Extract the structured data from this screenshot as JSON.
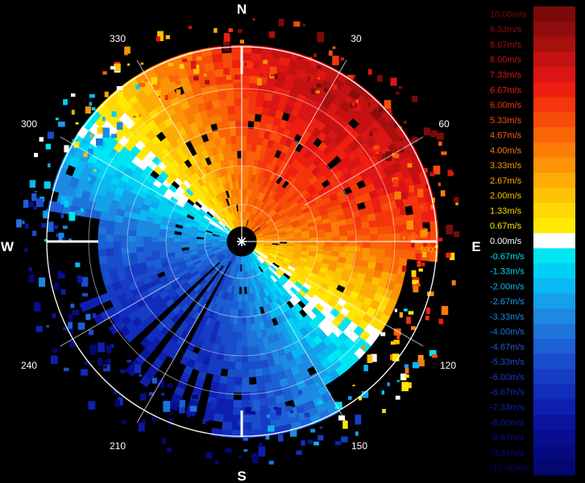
{
  "compass": {
    "north": "N",
    "east": "E",
    "south": "S",
    "west": "W"
  },
  "bearings": [
    "30",
    "60",
    "120",
    "150",
    "210",
    "240",
    "300",
    "330"
  ],
  "range_labels": [
    "1000",
    "2000",
    "3000",
    "5000"
  ],
  "legend": {
    "items": [
      {
        "label": "10.00m/s",
        "color": "#7a0a0a"
      },
      {
        "label": "9.33m/s",
        "color": "#8f0c0c"
      },
      {
        "label": "8.67m/s",
        "color": "#a80f0f"
      },
      {
        "label": "8.00m/s",
        "color": "#c41212"
      },
      {
        "label": "7.33m/s",
        "color": "#db1515"
      },
      {
        "label": "6.67m/s",
        "color": "#ee1e10"
      },
      {
        "label": "6.00m/s",
        "color": "#f5350c"
      },
      {
        "label": "5.33m/s",
        "color": "#f84c0a"
      },
      {
        "label": "4.67m/s",
        "color": "#fa6408"
      },
      {
        "label": "4.00m/s",
        "color": "#fb7c07"
      },
      {
        "label": "3.33m/s",
        "color": "#fc9406"
      },
      {
        "label": "2.67m/s",
        "color": "#fdab05"
      },
      {
        "label": "2.00m/s",
        "color": "#fec204"
      },
      {
        "label": "1.33m/s",
        "color": "#ffd803"
      },
      {
        "label": "0.67m/s",
        "color": "#ffe902"
      },
      {
        "label": "0.00m/s",
        "color": "#ffffff"
      },
      {
        "label": "-0.67m/s",
        "color": "#00e6f2"
      },
      {
        "label": "-1.33m/s",
        "color": "#00d0f5"
      },
      {
        "label": "-2.00m/s",
        "color": "#0ab8f2"
      },
      {
        "label": "-2.67m/s",
        "color": "#169fea"
      },
      {
        "label": "-3.33m/s",
        "color": "#1d8ae2"
      },
      {
        "label": "-4.00m/s",
        "color": "#1f74db"
      },
      {
        "label": "-4.67m/s",
        "color": "#1d5fd4"
      },
      {
        "label": "-5.33m/s",
        "color": "#1a4dcc"
      },
      {
        "label": "-6.00m/s",
        "color": "#163cc4"
      },
      {
        "label": "-6.67m/s",
        "color": "#122cbc"
      },
      {
        "label": "-7.33m/s",
        "color": "#0e1fb0"
      },
      {
        "label": "-8.00m/s",
        "color": "#0b15a0"
      },
      {
        "label": "-8.67m/s",
        "color": "#080e90"
      },
      {
        "label": "-9.33m/s",
        "color": "#060a80"
      },
      {
        "label": "-10.00m/s",
        "color": "#040770"
      }
    ]
  }
}
